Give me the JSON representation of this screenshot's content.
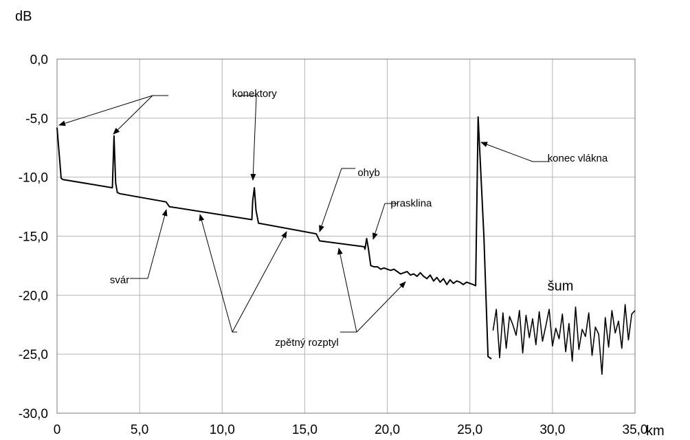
{
  "chart_data": {
    "type": "line",
    "title": "",
    "ylabel": "dB",
    "xlabel": "km",
    "xlim": [
      0,
      35
    ],
    "ylim": [
      -30,
      0
    ],
    "x_ticks": [
      0,
      5,
      10,
      15,
      20,
      25,
      30,
      35
    ],
    "x_tick_labels": [
      "0",
      "5,0",
      "10,0",
      "15,0",
      "20,0",
      "25,0",
      "30,0",
      "35,0"
    ],
    "y_ticks": [
      0,
      -5,
      -10,
      -15,
      -20,
      -25,
      -30
    ],
    "y_tick_labels": [
      "0,0",
      "-5,0",
      "-10,0",
      "-15,0",
      "-20,0",
      "-25,0",
      "-30,0"
    ],
    "grid": true,
    "series": [
      {
        "values_x": [
          0,
          0.25,
          0.35,
          3.35,
          3.45,
          3.55,
          3.65,
          3.8,
          6.6,
          6.8,
          11.8,
          11.85,
          11.95,
          12.05,
          12.2,
          15.7,
          15.9,
          18.6,
          18.65,
          18.75,
          18.85,
          19.0,
          19.2,
          19.4,
          19.6,
          19.8,
          20.0,
          20.2,
          20.4,
          20.6,
          20.8,
          21.0,
          21.2,
          21.4,
          21.6,
          21.8,
          22.0,
          22.2,
          22.4,
          22.6,
          22.8,
          23.0,
          23.2,
          23.4,
          23.6,
          23.8,
          24.0,
          24.2,
          24.4,
          24.6,
          24.8,
          25.0,
          25.2,
          25.35,
          25.5,
          25.85,
          26.1,
          26.3
        ],
        "values_y": [
          -5.8,
          -10.1,
          -10.2,
          -10.9,
          -6.5,
          -10.5,
          -11.3,
          -11.4,
          -12.1,
          -12.5,
          -13.6,
          -12.0,
          -10.9,
          -12.8,
          -13.9,
          -14.8,
          -15.4,
          -15.9,
          -16.1,
          -15.2,
          -16.0,
          -17.5,
          -17.6,
          -17.6,
          -17.8,
          -17.7,
          -17.8,
          -17.9,
          -17.8,
          -18.0,
          -18.2,
          -18.1,
          -18.0,
          -18.3,
          -18.2,
          -18.4,
          -18.1,
          -18.4,
          -18.6,
          -18.3,
          -18.8,
          -18.5,
          -18.9,
          -18.6,
          -19.1,
          -18.7,
          -19.0,
          -18.8,
          -18.9,
          -19.1,
          -18.9,
          -19.0,
          -19.1,
          -19.2,
          -4.9,
          -15.0,
          -25.2,
          -25.4
        ]
      },
      {
        "values_x": [
          26.4,
          26.6,
          26.8,
          27.0,
          27.2,
          27.4,
          27.6,
          27.8,
          28.0,
          28.2,
          28.4,
          28.6,
          28.8,
          29.0,
          29.2,
          29.4,
          29.6,
          29.8,
          30.0,
          30.2,
          30.4,
          30.6,
          30.8,
          31.0,
          31.2,
          31.4,
          31.6,
          31.8,
          32.0,
          32.2,
          32.4,
          32.6,
          32.8,
          33.0,
          33.2,
          33.4,
          33.6,
          33.8,
          34.0,
          34.2,
          34.4,
          34.6,
          34.8,
          35.0
        ],
        "values_y": [
          -23.0,
          -21.2,
          -25.3,
          -21.5,
          -24.5,
          -21.8,
          -22.5,
          -23.4,
          -21.3,
          -24.9,
          -21.7,
          -23.6,
          -22.0,
          -24.2,
          -21.4,
          -23.9,
          -22.6,
          -21.2,
          -24.3,
          -22.8,
          -23.7,
          -21.6,
          -24.8,
          -22.4,
          -25.6,
          -21.0,
          -24.6,
          -22.9,
          -23.5,
          -21.5,
          -25.1,
          -22.7,
          -23.3,
          -26.7,
          -21.9,
          -24.4,
          -21.3,
          -23.2,
          -22.2,
          -24.5,
          -20.8,
          -23.8,
          -21.6,
          -21.3
        ]
      }
    ],
    "annotations": {
      "connectors": {
        "text": "konektory",
        "x": 10.6,
        "y": -2.9
      },
      "splice": {
        "text": "svár",
        "x": 3.2,
        "y": -18.7
      },
      "bend": {
        "text": "ohyb",
        "x": 18.2,
        "y": -9.6
      },
      "crack": {
        "text": "prasklina",
        "x": 20.2,
        "y": -12.2
      },
      "fiber_end": {
        "text": "konec vlákna",
        "x": 29.7,
        "y": -8.4
      },
      "backscatter": {
        "text": "zpětný rozptyl",
        "x": 13.2,
        "y": -24.0
      },
      "noise": {
        "text": "šum",
        "x": 29.7,
        "y": -19.3
      }
    }
  }
}
